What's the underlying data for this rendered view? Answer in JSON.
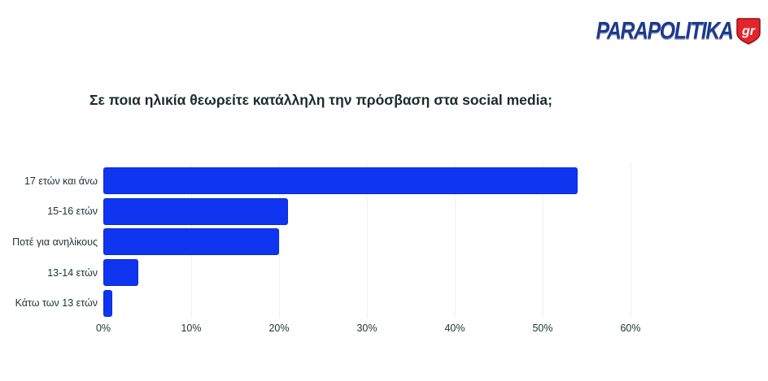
{
  "logo": {
    "brand": "PARAPOLITIKA",
    "badge": "gr",
    "brand_color": "#1d3a8e",
    "badge_color": "#e3242b"
  },
  "title": "Σε ποια ηλικία θεωρείτε κατάλληλη την πρόσβαση στα social media;",
  "chart_data": {
    "type": "bar",
    "orientation": "horizontal",
    "title": "Σε ποια ηλικία θεωρείτε κατάλληλη την πρόσβαση στα social media;",
    "categories": [
      "17 ετών και άνω",
      "15-16 ετών",
      "Ποτέ για ανηλίκους",
      "13-14 ετών",
      "Κάτω των 13 ετών"
    ],
    "values": [
      54,
      21,
      20,
      4,
      1
    ],
    "unit": "%",
    "xticks": [
      "0%",
      "10%",
      "20%",
      "30%",
      "40%",
      "50%",
      "60%"
    ],
    "xlim": [
      0,
      60
    ],
    "xlabel": "",
    "ylabel": "",
    "grid": true,
    "legend": false,
    "bar_color": "#0f35f0",
    "gridline_color": "#edf2f2"
  }
}
